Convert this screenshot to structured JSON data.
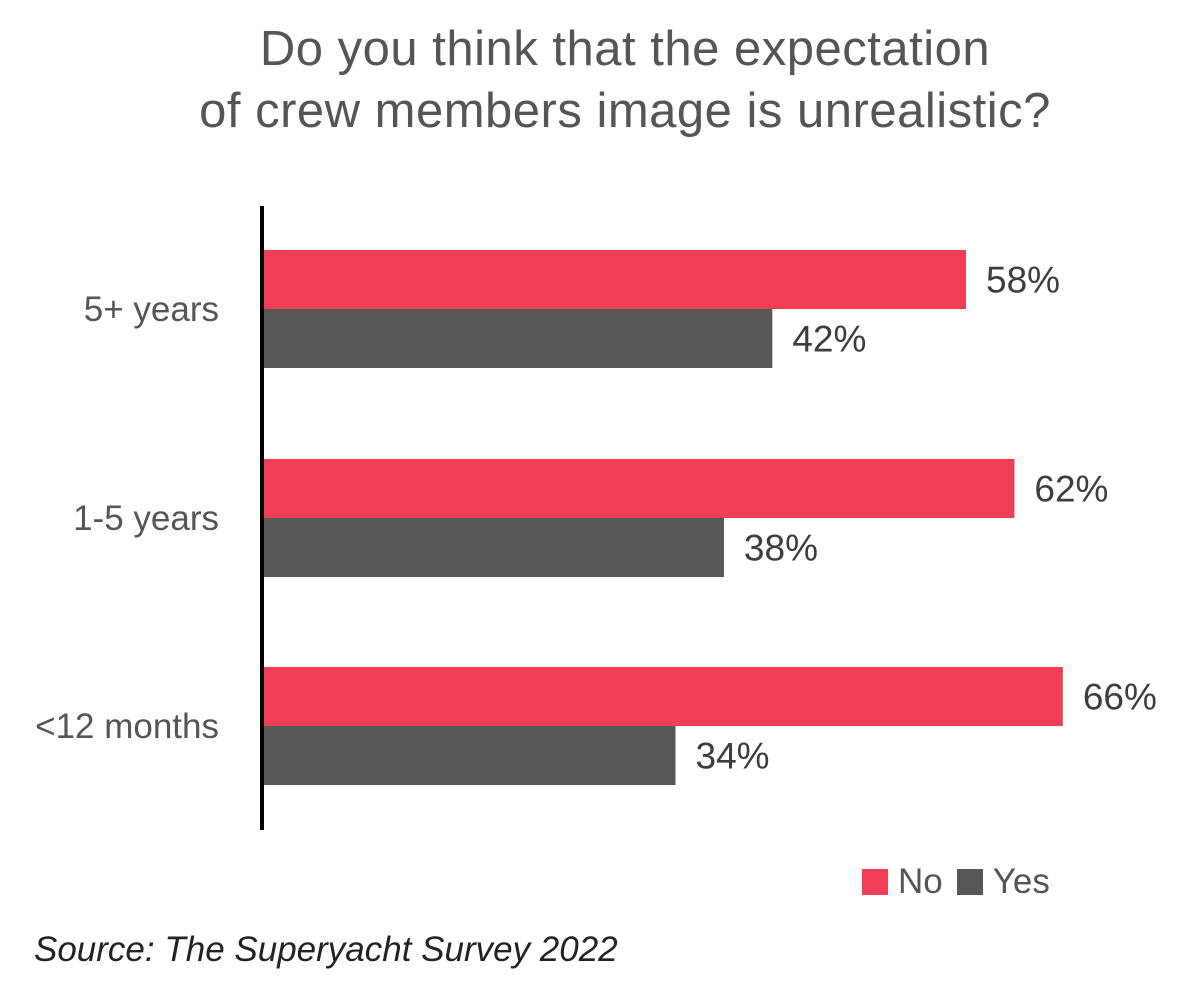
{
  "chart_data": {
    "type": "bar",
    "orientation": "horizontal",
    "title_lines": [
      "Do you think that the expectation",
      "of crew members image is unrealistic?"
    ],
    "categories": [
      "5+ years",
      "1-5 years",
      "<12 months"
    ],
    "series": [
      {
        "name": "No",
        "color": "#ef3e56",
        "values": [
          58,
          62,
          66
        ],
        "labels": [
          "58%",
          "62%",
          "66%"
        ]
      },
      {
        "name": "Yes",
        "color": "#555759",
        "values": [
          42,
          38,
          34
        ],
        "labels": [
          "42%",
          "38%",
          "34%"
        ]
      }
    ],
    "xlim": [
      0,
      100
    ],
    "grid": false,
    "legend_position": "bottom-right"
  },
  "source": "Source: The Superyacht Survey 2022"
}
